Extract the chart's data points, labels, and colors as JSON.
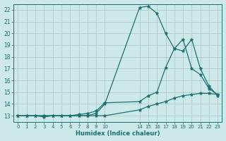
{
  "xlabel": "Humidex (Indice chaleur)",
  "background_color": "#cde8e8",
  "grid_color": "#b0c8c8",
  "line_color": "#1a7070",
  "x_ticks_labels": [
    "0",
    "1",
    "2",
    "3",
    "4",
    "5",
    "6",
    "7",
    "8",
    "9",
    "10",
    "14",
    "15",
    "16",
    "17",
    "18",
    "19",
    "20",
    "21",
    "22",
    "23"
  ],
  "x_ticks_pos": [
    0,
    1,
    2,
    3,
    4,
    5,
    6,
    7,
    8,
    9,
    10,
    14,
    15,
    16,
    17,
    18,
    19,
    20,
    21,
    22,
    23
  ],
  "ylim": [
    12.5,
    22.5
  ],
  "xlim": [
    -0.5,
    23.5
  ],
  "y_ticks": [
    13,
    14,
    15,
    16,
    17,
    18,
    19,
    20,
    21,
    22
  ],
  "series": [
    {
      "x": [
        0,
        1,
        2,
        3,
        4,
        5,
        6,
        7,
        8,
        9,
        10,
        14,
        15,
        16,
        17,
        18,
        19,
        20,
        21,
        22,
        23
      ],
      "y": [
        13,
        13,
        13,
        13,
        13,
        13,
        13,
        13,
        13,
        13,
        13,
        13.5,
        13.8,
        14.0,
        14.2,
        14.5,
        14.7,
        14.8,
        14.9,
        14.9,
        14.8
      ]
    },
    {
      "x": [
        0,
        1,
        2,
        3,
        4,
        5,
        6,
        7,
        8,
        9,
        10,
        14,
        15,
        16,
        17,
        18,
        19,
        20,
        21,
        22,
        23
      ],
      "y": [
        13,
        13,
        13,
        12.9,
        13,
        13,
        13,
        13.1,
        13.2,
        13.4,
        14.1,
        14.2,
        14.7,
        15.0,
        17.1,
        18.7,
        19.5,
        17.0,
        16.5,
        15.3,
        14.8
      ]
    },
    {
      "x": [
        0,
        1,
        2,
        3,
        4,
        5,
        6,
        7,
        8,
        9,
        10,
        14,
        15,
        16,
        17,
        18,
        19,
        20,
        21,
        22,
        23
      ],
      "y": [
        13,
        13,
        13,
        13,
        13,
        13,
        13,
        13,
        13,
        13.2,
        14.0,
        22.2,
        22.3,
        21.7,
        20.0,
        18.7,
        18.5,
        19.5,
        17.0,
        15.5,
        14.7
      ]
    }
  ]
}
